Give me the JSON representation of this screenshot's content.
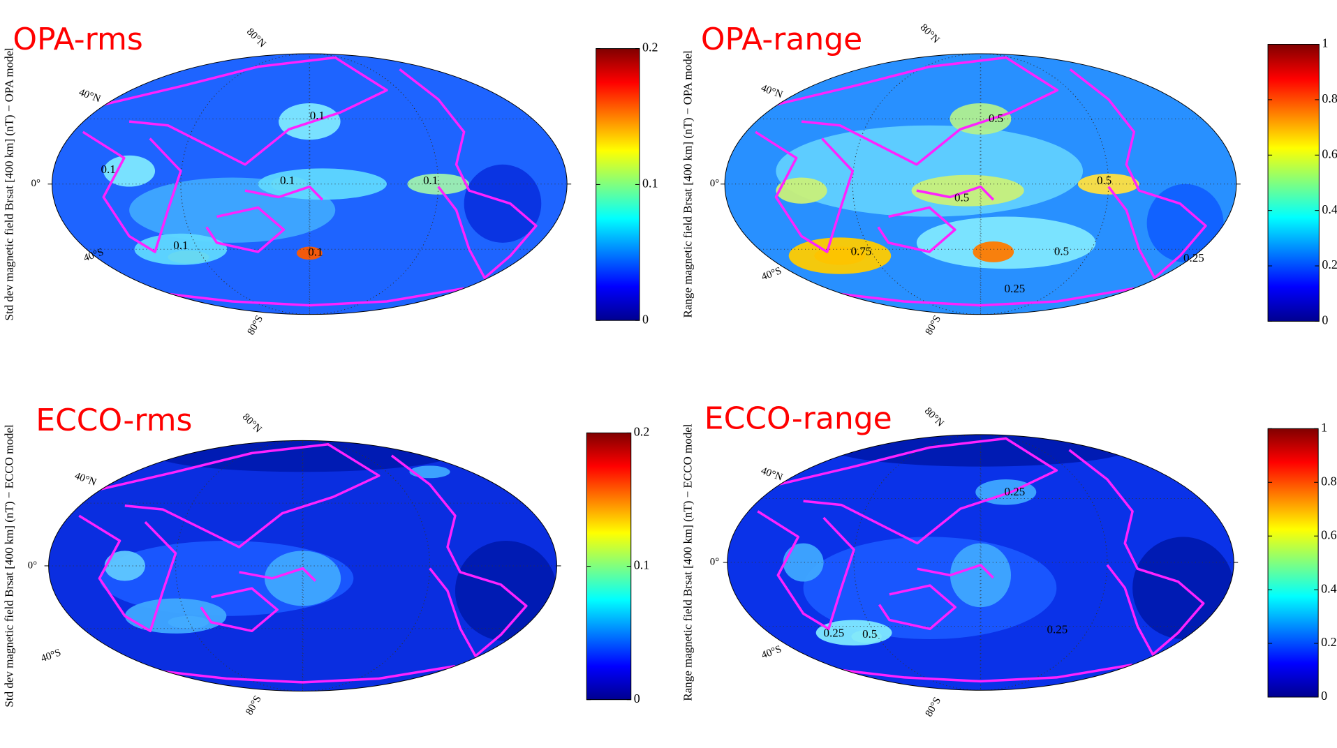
{
  "panels": [
    {
      "title": "OPA-rms",
      "axis_label": "Std dev  magnetic field Brsat [400 km] (nT) − OPA model",
      "lat_labels": [
        "80°N",
        "40°N",
        "0°",
        "40°S",
        "80°S"
      ],
      "colorbar": {
        "lim": [
          0,
          0.2
        ],
        "ticks": [
          0,
          0.1,
          0.2
        ]
      },
      "contour_labels": [
        0.1,
        0.1,
        0.1,
        0.1,
        0.1,
        0.1
      ]
    },
    {
      "title": "OPA-range",
      "axis_label": "Range  magnetic field Brsat [400 km] (nT) − OPA model",
      "lat_labels": [
        "80°N",
        "40°N",
        "0°",
        "40°S",
        "80°S"
      ],
      "colorbar": {
        "lim": [
          0,
          1
        ],
        "ticks": [
          0,
          0.2,
          0.4,
          0.6,
          0.8,
          1
        ]
      },
      "contour_labels": [
        0.5,
        0.5,
        0.5,
        0.5,
        0.75,
        0.25,
        0.25
      ]
    },
    {
      "title": "ECCO-rms",
      "axis_label": "Std dev  magnetic field Brsat [400 km] (nT) − ECCO model",
      "lat_labels": [
        "80°N",
        "40°N",
        "0°",
        "40°S",
        "80°S"
      ],
      "colorbar": {
        "lim": [
          0,
          0.2
        ],
        "ticks": [
          0,
          0.1,
          0.2
        ]
      },
      "contour_labels": []
    },
    {
      "title": "ECCO-range",
      "axis_label": "Range  magnetic field Brsat [400 km] (nT) − ECCO model",
      "lat_labels": [
        "80°N",
        "40°N",
        "0°",
        "40°S",
        "80°S"
      ],
      "colorbar": {
        "lim": [
          0,
          1
        ],
        "ticks": [
          0,
          0.2,
          0.4,
          0.6,
          0.8,
          1
        ]
      },
      "contour_labels": [
        0.25,
        0.25,
        0.25,
        0.5
      ]
    }
  ]
}
